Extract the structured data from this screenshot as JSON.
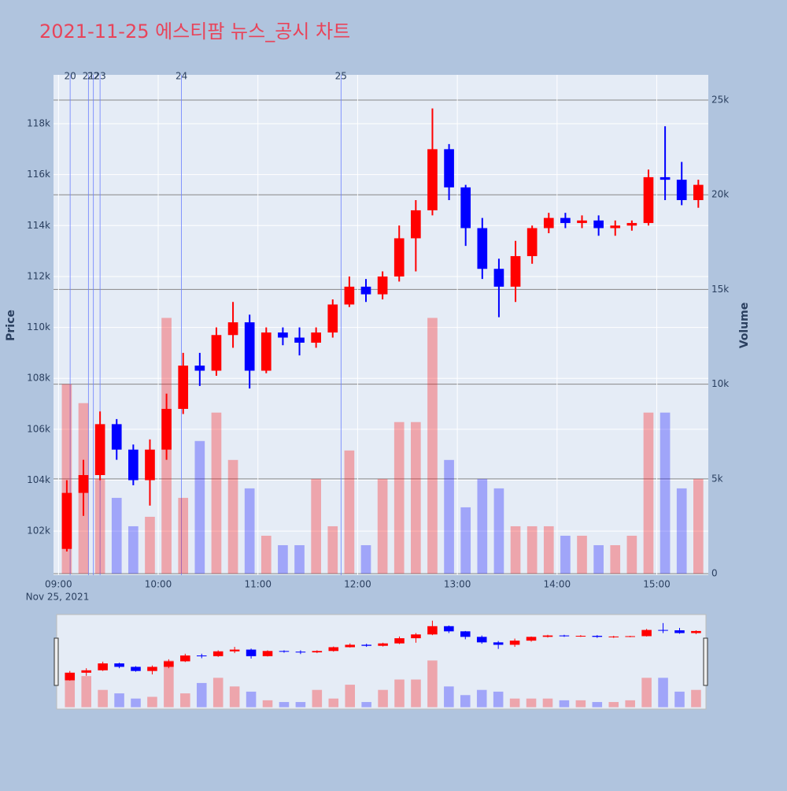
{
  "chart_data": {
    "type": "candlestick",
    "title": "2021-11-25 에스티팜 뉴스_공시 차트",
    "y_label": "Price",
    "y2_label": "Volume",
    "x_date_label": "Nov 25, 2021",
    "increasing_color": "#ff0000",
    "decreasing_color": "#0000ff",
    "x": [
      "2021-11-25 09:00",
      "2021-11-25 09:10",
      "2021-11-25 09:20",
      "2021-11-25 09:30",
      "2021-11-25 09:40",
      "2021-11-25 09:50",
      "2021-11-25 10:00",
      "2021-11-25 10:10",
      "2021-11-25 10:20",
      "2021-11-25 10:30",
      "2021-11-25 10:40",
      "2021-11-25 10:50",
      "2021-11-25 11:00",
      "2021-11-25 11:10",
      "2021-11-25 11:20",
      "2021-11-25 11:30",
      "2021-11-25 11:40",
      "2021-11-25 11:50",
      "2021-11-25 12:00",
      "2021-11-25 12:10",
      "2021-11-25 12:20",
      "2021-11-25 12:30",
      "2021-11-25 12:40",
      "2021-11-25 12:50",
      "2021-11-25 13:00",
      "2021-11-25 13:10",
      "2021-11-25 13:20",
      "2021-11-25 13:30",
      "2021-11-25 13:40",
      "2021-11-25 13:50",
      "2021-11-25 14:00",
      "2021-11-25 14:10",
      "2021-11-25 14:20",
      "2021-11-25 14:30",
      "2021-11-25 14:40",
      "2021-11-25 14:50",
      "2021-11-25 15:00",
      "2021-11-25 15:10",
      "2021-11-25 15:20"
    ],
    "open": [
      101300,
      103500,
      104200,
      106200,
      105200,
      104000,
      105200,
      106800,
      108500,
      108300,
      109700,
      110200,
      108300,
      109800,
      109600,
      109400,
      109800,
      110900,
      111600,
      111300,
      112000,
      113500,
      114600,
      117000,
      115500,
      113900,
      112300,
      111600,
      112800,
      113900,
      114300,
      114100,
      114200,
      113900,
      114000,
      114100,
      115900,
      115800,
      115000
    ],
    "high": [
      104000,
      104800,
      106700,
      106400,
      105400,
      105600,
      107400,
      109000,
      109000,
      110000,
      111000,
      110500,
      110000,
      110000,
      110000,
      110000,
      111100,
      112000,
      111900,
      112200,
      114000,
      115000,
      118600,
      117200,
      115600,
      114300,
      112700,
      113400,
      114000,
      114500,
      114500,
      114400,
      114400,
      114200,
      114200,
      116200,
      117900,
      116500,
      115800
    ],
    "low": [
      101200,
      102600,
      104000,
      104800,
      103800,
      103000,
      104800,
      106600,
      107700,
      108100,
      109200,
      107600,
      108200,
      109300,
      108900,
      109200,
      109600,
      110800,
      111000,
      111100,
      111800,
      112200,
      114400,
      115000,
      113200,
      111900,
      110400,
      111000,
      112500,
      113700,
      113900,
      113900,
      113600,
      113600,
      113800,
      114000,
      115000,
      114800,
      114700
    ],
    "close": [
      103500,
      104200,
      106200,
      105200,
      104000,
      105200,
      106800,
      108500,
      108300,
      109700,
      110200,
      108300,
      109800,
      109600,
      109400,
      109800,
      110900,
      111600,
      111300,
      112000,
      113500,
      114600,
      117000,
      115500,
      113900,
      112300,
      111600,
      112800,
      113900,
      114300,
      114100,
      114200,
      113900,
      114000,
      114100,
      115900,
      115800,
      115000,
      115600
    ],
    "volume": [
      10000,
      9000,
      5000,
      4000,
      2500,
      3000,
      13500,
      4000,
      7000,
      8500,
      6000,
      4500,
      2000,
      1500,
      1500,
      5000,
      2500,
      6500,
      1500,
      5000,
      8000,
      8000,
      13500,
      6000,
      3500,
      5000,
      4500,
      2500,
      2500,
      2500,
      2000,
      2000,
      1500,
      1500,
      2000,
      8500,
      8500,
      4500,
      5000
    ],
    "markers": [
      {
        "x": "2021-11-25 09:07",
        "label": "20"
      },
      {
        "x": "2021-11-25 09:18",
        "label": "21"
      },
      {
        "x": "2021-11-25 09:21",
        "label": "22"
      },
      {
        "x": "2021-11-25 09:25",
        "label": "23"
      },
      {
        "x": "2021-11-25 10:14",
        "label": "24"
      },
      {
        "x": "2021-11-25 11:50",
        "label": "25"
      }
    ],
    "xlim": [
      "2021-11-25 08:57",
      "2021-11-25 15:31"
    ],
    "xticks": [
      {
        "value": "2021-11-25 09:00",
        "label": "09:00"
      },
      {
        "value": "2021-11-25 10:00",
        "label": "10:00"
      },
      {
        "value": "2021-11-25 11:00",
        "label": "11:00"
      },
      {
        "value": "2021-11-25 12:00",
        "label": "12:00"
      },
      {
        "value": "2021-11-25 13:00",
        "label": "13:00"
      },
      {
        "value": "2021-11-25 14:00",
        "label": "14:00"
      },
      {
        "value": "2021-11-25 15:00",
        "label": "15:00"
      }
    ],
    "ylim": [
      100270,
      119920
    ],
    "yticks": [
      {
        "value": 102000,
        "label": "102k"
      },
      {
        "value": 104000,
        "label": "104k"
      },
      {
        "value": 106000,
        "label": "106k"
      },
      {
        "value": 108000,
        "label": "108k"
      },
      {
        "value": 110000,
        "label": "110k"
      },
      {
        "value": 112000,
        "label": "112k"
      },
      {
        "value": 114000,
        "label": "114k"
      },
      {
        "value": 116000,
        "label": "116k"
      },
      {
        "value": 118000,
        "label": "118k"
      }
    ],
    "y2lim": [
      -80,
      26330
    ],
    "y2ticks": [
      0,
      {
        "value": 5000,
        "label": "5k"
      },
      {
        "value": 10000,
        "label": "10k"
      },
      {
        "value": 15000,
        "label": "15k"
      },
      {
        "value": 20000,
        "label": "20k"
      },
      {
        "value": 25000,
        "label": "25k"
      }
    ],
    "grid": true,
    "range_slider": true
  }
}
